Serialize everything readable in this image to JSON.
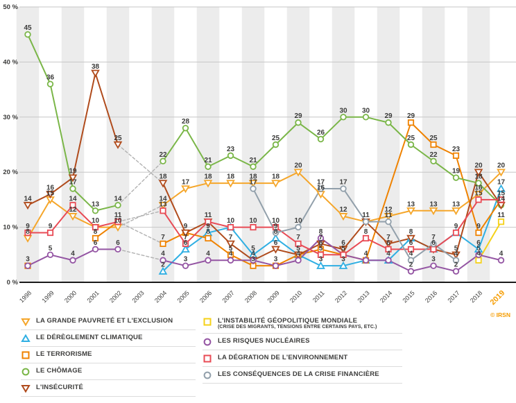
{
  "credit": "© IRSN",
  "chart_data": {
    "type": "line",
    "x": [
      "1998",
      "1999",
      "2000",
      "2001",
      "2002",
      "2003",
      "2004",
      "2005",
      "2006",
      "2007",
      "2008",
      "2009",
      "2010",
      "2011",
      "2012",
      "2013",
      "2014",
      "2015",
      "2016",
      "2017",
      "2018",
      "2019"
    ],
    "gap_year": "2003",
    "highlight_year": "2019",
    "ylim": [
      0,
      50
    ],
    "y_ticks": [
      {
        "label": "0 %",
        "value": 0
      },
      {
        "label": "10 %",
        "value": 10
      },
      {
        "label": "20 %",
        "value": 20
      },
      {
        "label": "30 %",
        "value": 30
      },
      {
        "label": "40 %",
        "value": 40
      },
      {
        "label": "50 %",
        "value": 50
      }
    ],
    "colors": {
      "accent": "#f59c00",
      "band": "#ececec",
      "grid": "#c6c6c6",
      "axis": "#1a1a1a",
      "label": "#3a3a39",
      "dashed_connector": "#b1b1b1"
    },
    "series": [
      {
        "name": "LA GRANDE PAUVRETÉ ET L'EXCLUSION",
        "marker": "triangle-down",
        "color": "#f5a62a",
        "values": [
          8,
          15,
          12,
          10,
          10,
          null,
          14,
          17,
          18,
          18,
          18,
          18,
          20,
          16,
          12,
          11,
          12,
          13,
          13,
          13,
          16,
          20
        ]
      },
      {
        "name": "LE DÉRÈGLEMENT CLIMATIQUE",
        "marker": "triangle-up",
        "color": "#2fafe3",
        "values": [
          null,
          null,
          null,
          null,
          null,
          null,
          2,
          6,
          9,
          10,
          5,
          8,
          5,
          3,
          3,
          4,
          4,
          8,
          6,
          9,
          6,
          17
        ]
      },
      {
        "name": "LE TERRORISME",
        "marker": "square",
        "color": "#ef8200",
        "values": [
          3,
          null,
          null,
          8,
          11,
          null,
          7,
          9,
          8,
          5,
          3,
          3,
          5,
          6,
          5,
          4,
          null,
          29,
          25,
          23,
          9,
          15
        ]
      },
      {
        "name": "LE CHÔMAGE",
        "marker": "circle",
        "color": "#7ab648",
        "values": [
          45,
          36,
          17,
          13,
          14,
          null,
          22,
          28,
          21,
          23,
          21,
          25,
          29,
          26,
          30,
          30,
          29,
          25,
          22,
          19,
          18,
          14
        ]
      },
      {
        "name": "L'INSÉCURITÉ",
        "marker": "triangle-down",
        "color": "#b04b1c",
        "values": [
          14,
          16,
          19,
          38,
          25,
          null,
          18,
          9,
          11,
          7,
          4,
          6,
          5,
          7,
          6,
          11,
          7,
          8,
          6,
          5,
          20,
          14
        ]
      },
      {
        "name": "L'INSTABILITÉ GÉOPOLITIQUE MONDIALE",
        "subtitle": "(CRISE DES MIGRANTS, TENSIONS ENTRE CERTAINS PAYS, ETC.)",
        "marker": "square",
        "color": "#f5d118",
        "values": [
          null,
          null,
          null,
          null,
          null,
          null,
          null,
          null,
          null,
          null,
          null,
          null,
          null,
          null,
          null,
          null,
          null,
          null,
          null,
          null,
          4,
          11
        ]
      },
      {
        "name": "LES RISQUES NUCLÉAIRES",
        "marker": "circle",
        "color": "#9455a3",
        "values": [
          3,
          5,
          4,
          6,
          6,
          null,
          4,
          3,
          4,
          4,
          4,
          3,
          4,
          8,
          5,
          4,
          4,
          2,
          3,
          2,
          5,
          4
        ]
      },
      {
        "name": "LA DÉGRATION DE L'ENVIRONNEMENT",
        "marker": "square",
        "color": "#e84b55",
        "values": [
          9,
          9,
          14,
          10,
          11,
          null,
          13,
          7,
          11,
          10,
          10,
          10,
          7,
          5,
          5,
          8,
          6,
          6,
          6,
          9,
          15,
          15
        ]
      },
      {
        "name": "LES CONSÉQUENCES DE LA CRISE FINANCIÈRE",
        "marker": "circle",
        "color": "#92a0ab",
        "values": [
          null,
          null,
          null,
          null,
          null,
          null,
          null,
          null,
          null,
          null,
          17,
          9,
          10,
          17,
          17,
          11,
          11,
          4,
          7,
          4,
          null,
          null
        ]
      }
    ],
    "legend": {
      "left_items": [
        0,
        1,
        2,
        3,
        4
      ],
      "right_items": [
        5,
        6,
        7,
        8
      ]
    }
  }
}
